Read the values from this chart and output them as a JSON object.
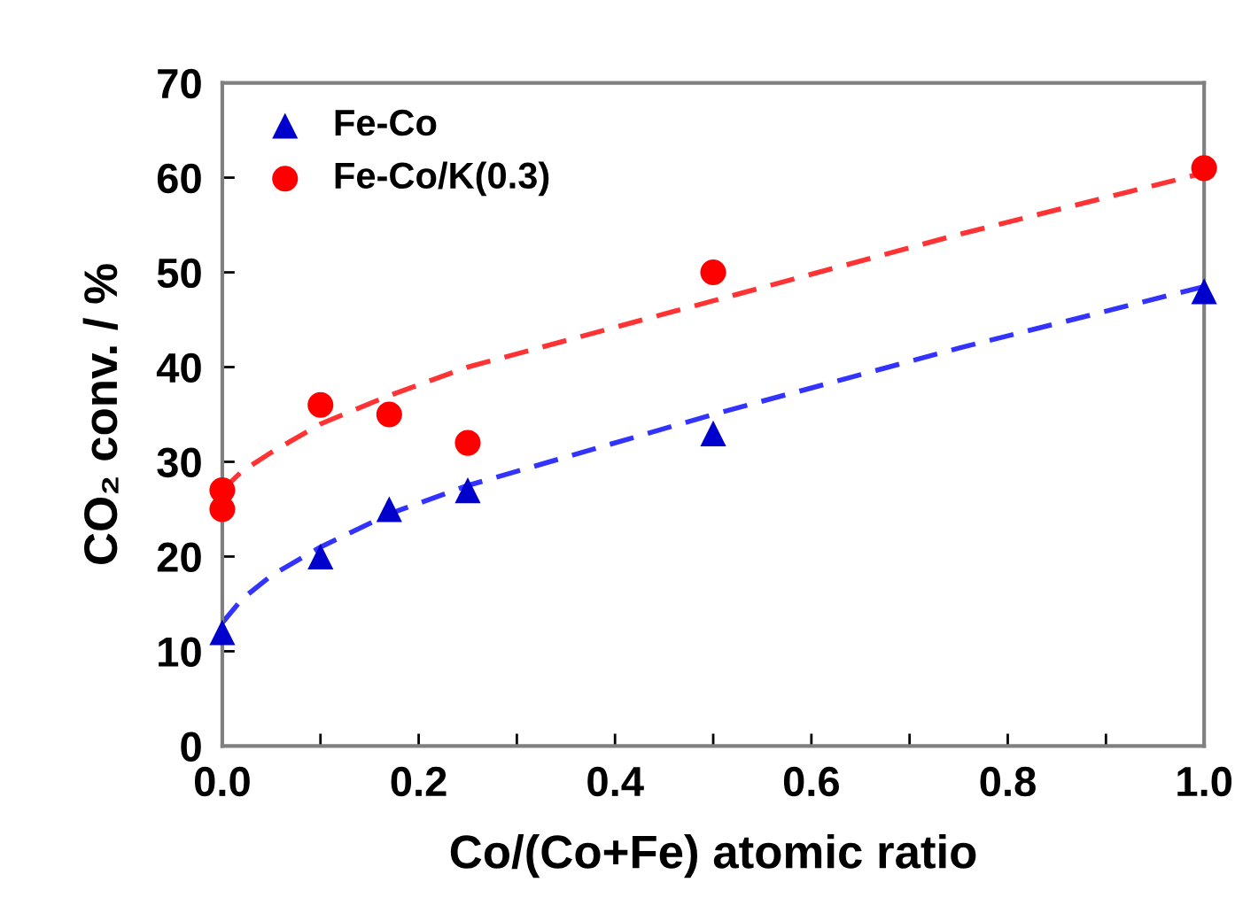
{
  "chart_data": {
    "type": "scatter",
    "xlabel": "Co/(Co+Fe) atomic ratio",
    "ylabel": "CO₂ conv. / %",
    "xlim": [
      0,
      1
    ],
    "xticks": [
      {
        "value": 0,
        "label": "0.0"
      },
      {
        "value": 0.1,
        "label": null
      },
      {
        "value": 0.2,
        "label": "0.2"
      },
      {
        "value": 0.3,
        "label": null
      },
      {
        "value": 0.4,
        "label": "0.4"
      },
      {
        "value": 0.5,
        "label": null
      },
      {
        "value": 0.6,
        "label": "0.6"
      },
      {
        "value": 0.7,
        "label": null
      },
      {
        "value": 0.8,
        "label": "0.8"
      },
      {
        "value": 0.9,
        "label": null
      },
      {
        "value": 1,
        "label": "1.0"
      }
    ],
    "ylim": [
      0,
      70
    ],
    "yticks": [
      0,
      10,
      20,
      30,
      40,
      50,
      60,
      70
    ],
    "grid": false,
    "legend": "top left",
    "series": [
      {
        "name": "Fe-Co",
        "color": "#0000cc",
        "marker": "triangle",
        "x": [
          0,
          0.1,
          0.17,
          0.25,
          0.5,
          1.0
        ],
        "values": [
          12,
          20,
          25,
          27,
          33,
          48
        ]
      },
      {
        "name": "Fe-Co/K(0.3)",
        "color": "#ff0000",
        "marker": "circle",
        "x": [
          0,
          0,
          0.1,
          0.17,
          0.25,
          0.5,
          1.0
        ],
        "values": [
          27,
          25,
          36,
          35,
          32,
          50,
          61
        ]
      },
      {
        "type": "line",
        "color": "#3333ff",
        "line_style": "dashed",
        "marker": "none",
        "x": [
          0,
          0.02,
          0.05,
          0.1,
          0.17,
          0.25,
          0.5,
          0.75,
          1.0
        ],
        "values": [
          13,
          15.5,
          18,
          21,
          24.5,
          27.5,
          35,
          42,
          48.5
        ]
      },
      {
        "type": "line",
        "color": "#ff3333",
        "line_style": "dashed",
        "marker": "none",
        "x": [
          0,
          0.02,
          0.05,
          0.1,
          0.17,
          0.25,
          0.5,
          0.75,
          1.0
        ],
        "values": [
          27,
          29,
          31,
          34,
          37,
          40,
          47,
          54,
          60.5
        ]
      }
    ]
  }
}
